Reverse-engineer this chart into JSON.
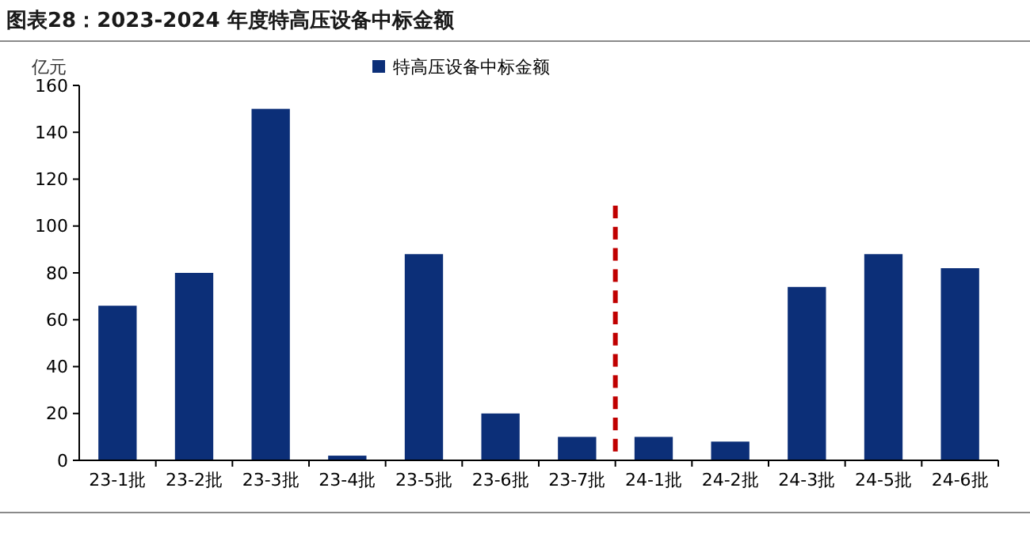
{
  "chart_data": {
    "type": "bar",
    "title": "图表28：2023-2024 年度特高压设备中标金额",
    "ylabel": "亿元",
    "categories": [
      "23-1批",
      "23-2批",
      "23-3批",
      "23-4批",
      "23-5批",
      "23-6批",
      "23-7批",
      "24-1批",
      "24-2批",
      "24-3批",
      "24-5批",
      "24-6批"
    ],
    "series": [
      {
        "name": "特高压设备中标金额",
        "color": "#0c2f78",
        "values": [
          66,
          80,
          150,
          2,
          88,
          20,
          10,
          10,
          8,
          74,
          88,
          82
        ]
      }
    ],
    "ylim": [
      0,
      160
    ],
    "yticks": [
      0,
      20,
      40,
      60,
      80,
      100,
      120,
      140,
      160
    ],
    "grid": false,
    "legend": "top"
  }
}
